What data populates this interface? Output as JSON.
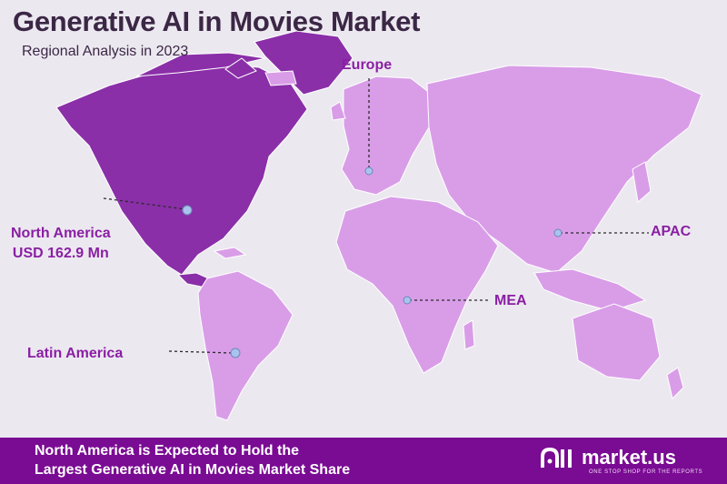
{
  "header": {
    "title": "Generative AI in Movies Market",
    "subtitle": "Regional Analysis in 2023"
  },
  "regions": {
    "north_america": {
      "name": "North America",
      "value": "USD 162.9 Mn",
      "color": "#8a2fa8"
    },
    "latin_america": {
      "name": "Latin America",
      "color": "#d99de8"
    },
    "europe": {
      "name": "Europe",
      "color": "#d99de8"
    },
    "apac": {
      "name": "APAC",
      "color": "#d99de8"
    },
    "mea": {
      "name": "MEA",
      "color": "#d99de8"
    }
  },
  "footer": {
    "line1": "North America is Expected to Hold the",
    "line2": "Largest Generative AI in Movies Market Share",
    "brand_name": "market.us",
    "brand_tagline": "ONE STOP SHOP FOR THE REPORTS",
    "background": "#7a0b93"
  }
}
